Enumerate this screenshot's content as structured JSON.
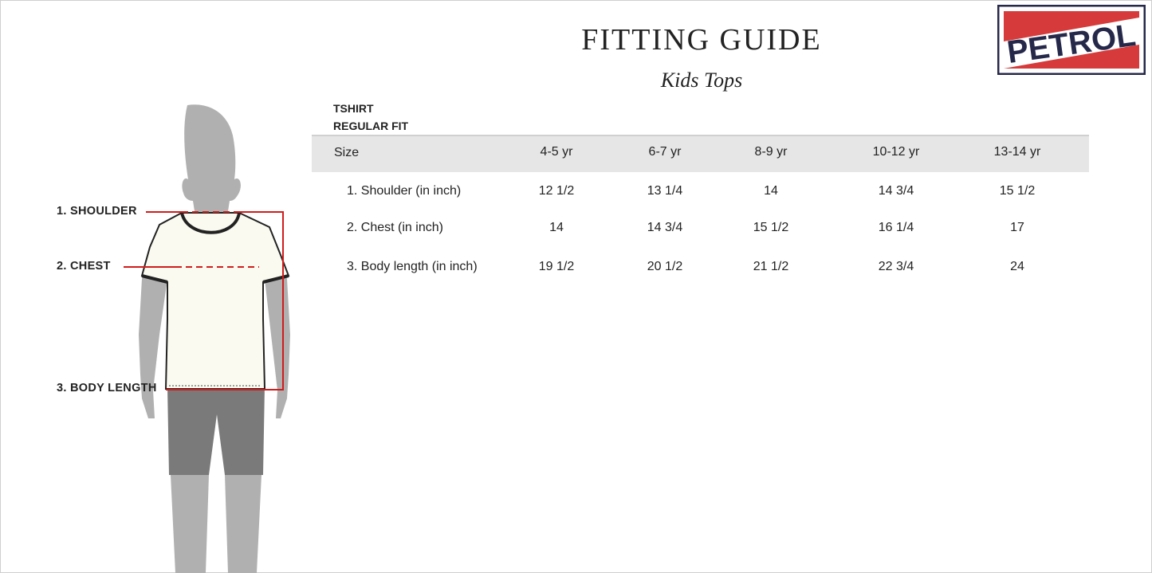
{
  "header": {
    "title": "FITTING GUIDE",
    "subtitle": "Kids Tops"
  },
  "logo": {
    "text": "PETROL",
    "colors": {
      "red": "#d63a3a",
      "navy": "#26284a"
    }
  },
  "product": {
    "type": "TSHIRT",
    "fit": "REGULAR FIT"
  },
  "figure_labels": {
    "shoulder": "1. SHOULDER",
    "chest": "2. CHEST",
    "body_length": "3. BODY LENGTH"
  },
  "table": {
    "size_label": "Size",
    "sizes": [
      "4-5 yr",
      "6-7 yr",
      "8-9 yr",
      "10-12 yr",
      "13-14 yr"
    ],
    "rows": [
      {
        "label": "1. Shoulder (in inch)",
        "values": [
          "12 1/2",
          "13 1/4",
          "14",
          "14 3/4",
          "15 1/2"
        ]
      },
      {
        "label": "2. Chest (in inch)",
        "values": [
          "14",
          "14 3/4",
          "15 1/2",
          "16 1/4",
          "17"
        ]
      },
      {
        "label": "3. Body length (in inch)",
        "values": [
          "19 1/2",
          "20 1/2",
          "21 1/2",
          "22 3/4",
          "24"
        ]
      }
    ]
  }
}
